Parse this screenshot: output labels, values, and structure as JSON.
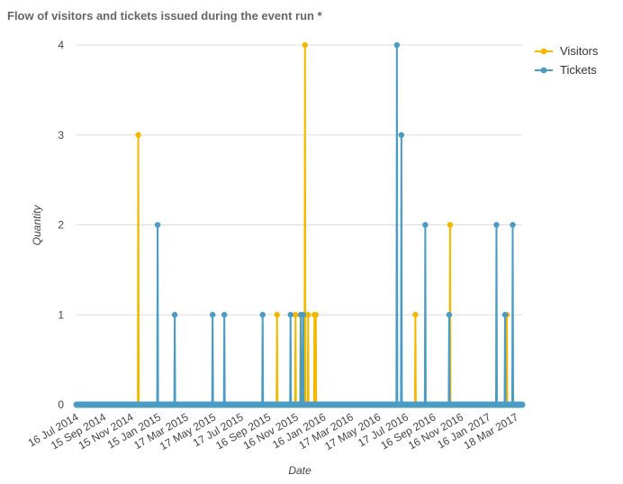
{
  "chart_data": {
    "type": "line",
    "title": "Flow of visitors and tickets issued during the event run *",
    "xlabel": "Date",
    "ylabel": "Quantity",
    "ylim": [
      0,
      4
    ],
    "yticks": [
      "0",
      "1",
      "2",
      "3",
      "4"
    ],
    "grid": true,
    "legend_position": "top-right",
    "x_range": [
      "2014-07-16",
      "2017-03-31"
    ],
    "x_ticks": [
      {
        "date": "2014-07-16",
        "label": "16 Jul 2014"
      },
      {
        "date": "2014-09-15",
        "label": "15 Sep 2014"
      },
      {
        "date": "2014-11-15",
        "label": "15 Nov 2014"
      },
      {
        "date": "2015-01-15",
        "label": "15 Jan 2015"
      },
      {
        "date": "2015-03-17",
        "label": "17 Mar 2015"
      },
      {
        "date": "2015-05-17",
        "label": "17 May 2015"
      },
      {
        "date": "2015-07-17",
        "label": "17 Jul 2015"
      },
      {
        "date": "2015-09-16",
        "label": "16 Sep 2015"
      },
      {
        "date": "2015-11-16",
        "label": "16 Nov 2015"
      },
      {
        "date": "2016-01-16",
        "label": "16 Jan 2016"
      },
      {
        "date": "2016-03-17",
        "label": "17 Mar 2016"
      },
      {
        "date": "2016-05-17",
        "label": "17 May 2016"
      },
      {
        "date": "2016-07-17",
        "label": "17 Jul 2016"
      },
      {
        "date": "2016-09-16",
        "label": "16 Sep 2016"
      },
      {
        "date": "2016-11-16",
        "label": "16 Nov 2016"
      },
      {
        "date": "2017-01-16",
        "label": "16 Jan 2017"
      },
      {
        "date": "2017-03-18",
        "label": "18 Mar 2017"
      }
    ],
    "series": [
      {
        "name": "Visitors",
        "color": "#f5b800",
        "points": [
          {
            "date": "2014-11-30",
            "value": 3
          },
          {
            "date": "2015-10-04",
            "value": 1
          },
          {
            "date": "2015-11-14",
            "value": 1
          },
          {
            "date": "2015-11-25",
            "value": 1
          },
          {
            "date": "2015-12-05",
            "value": 4
          },
          {
            "date": "2015-12-12",
            "value": 1
          },
          {
            "date": "2015-12-26",
            "value": 1
          },
          {
            "date": "2015-12-29",
            "value": 1
          },
          {
            "date": "2016-08-06",
            "value": 1
          },
          {
            "date": "2016-10-22",
            "value": 2
          },
          {
            "date": "2017-02-25",
            "value": 1
          }
        ]
      },
      {
        "name": "Tickets",
        "color": "#4a9cc4",
        "points": [
          {
            "date": "2015-01-12",
            "value": 2
          },
          {
            "date": "2015-02-19",
            "value": 1
          },
          {
            "date": "2015-05-14",
            "value": 1
          },
          {
            "date": "2015-06-09",
            "value": 1
          },
          {
            "date": "2015-09-02",
            "value": 1
          },
          {
            "date": "2015-11-03",
            "value": 1
          },
          {
            "date": "2015-11-26",
            "value": 1
          },
          {
            "date": "2015-12-01",
            "value": 1
          },
          {
            "date": "2016-06-26",
            "value": 4
          },
          {
            "date": "2016-07-06",
            "value": 3
          },
          {
            "date": "2016-08-28",
            "value": 2
          },
          {
            "date": "2016-10-20",
            "value": 1
          },
          {
            "date": "2017-02-02",
            "value": 2
          },
          {
            "date": "2017-02-21",
            "value": 1
          },
          {
            "date": "2017-03-10",
            "value": 2
          }
        ]
      }
    ]
  }
}
